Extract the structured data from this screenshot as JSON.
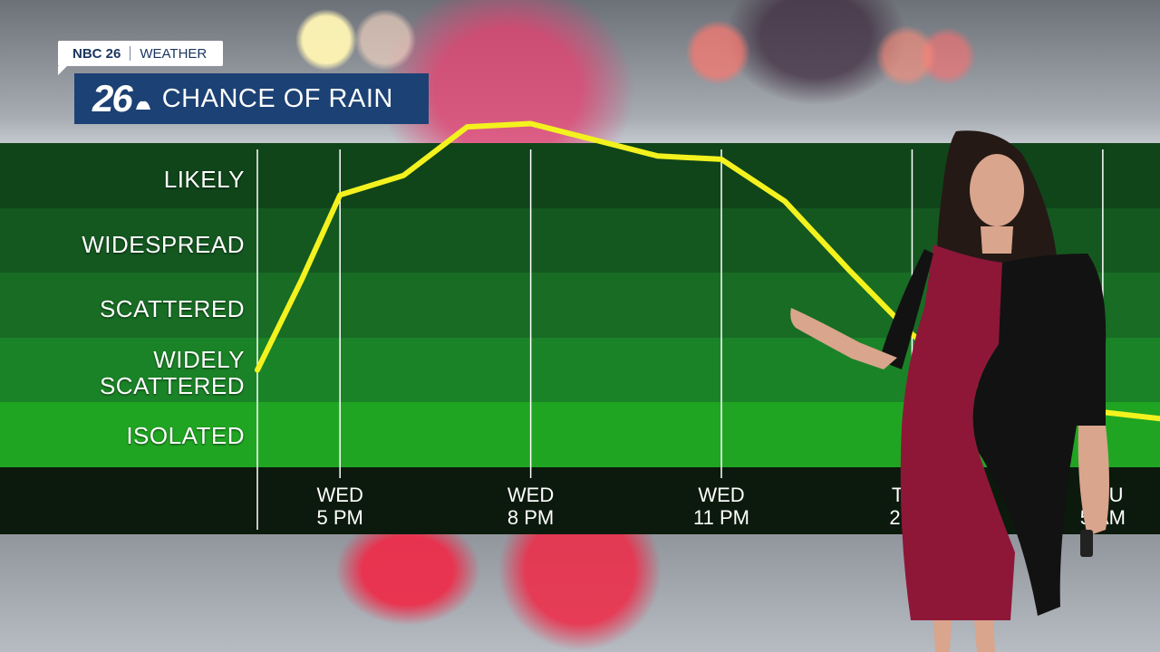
{
  "branding": {
    "network": "NBC 26",
    "section": "WEATHER",
    "logo_number": "26"
  },
  "chart_data": {
    "type": "line",
    "title": "CHANCE OF RAIN",
    "y_categories": [
      "ISOLATED",
      "WIDELY\nSCATTERED",
      "SCATTERED",
      "WIDESPREAD",
      "LIKELY"
    ],
    "y_category_labels": [
      "LIKELY",
      "WIDESPREAD",
      "SCATTERED",
      "WIDELY\nSCATTERED",
      "ISOLATED"
    ],
    "x_tick_labels": [
      "WED\n5 PM",
      "WED\n8 PM",
      "WED\n11 PM",
      "THU\n2 AM",
      "THU\n5 AM"
    ],
    "x_tick_hours": [
      17,
      20,
      23,
      26,
      29
    ],
    "xlim": [
      15.7,
      29.9
    ],
    "ylim": [
      0,
      5
    ],
    "line_color": "#f4f21e",
    "series": [
      {
        "x": [
          15.7,
          16.4,
          17.0,
          18.0,
          19.0,
          20.0,
          21.0,
          22.0,
          23.0,
          24.0,
          25.0,
          26.0,
          27.0,
          28.0,
          29.0,
          29.9
        ],
        "y": [
          1.5,
          2.9,
          4.2,
          4.5,
          5.25,
          5.3,
          5.05,
          4.8,
          4.75,
          4.1,
          3.05,
          2.05,
          1.25,
          0.95,
          0.85,
          0.75
        ]
      }
    ]
  }
}
